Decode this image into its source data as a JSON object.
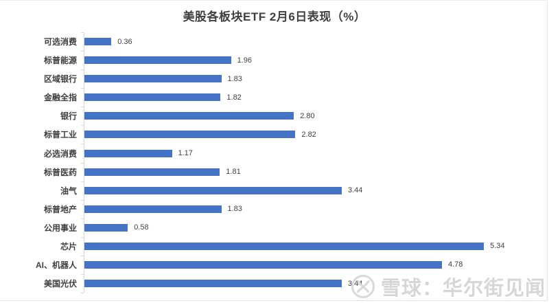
{
  "page": {
    "background": "#ffffff",
    "border_color": "#e4e4e4"
  },
  "title": "美股各板块ETF 2月6日表现（%）",
  "chart_data": {
    "type": "bar",
    "orientation": "horizontal",
    "title": "美股各板块ETF 2月6日表现（%）",
    "categories": [
      "可选消费",
      "标普能源",
      "区域银行",
      "金融全指",
      "银行",
      "标普工业",
      "必选消费",
      "标普医药",
      "油气",
      "标普地产",
      "公用事业",
      "芯片",
      "AI、机器人",
      "美国光伏"
    ],
    "values": [
      0.36,
      1.96,
      1.83,
      1.82,
      2.8,
      2.82,
      1.17,
      1.81,
      3.44,
      1.83,
      0.58,
      5.34,
      4.78,
      3.44
    ],
    "value_labels": [
      "0.36",
      "1.96",
      "1.83",
      "1.82",
      "2.80",
      "2.82",
      "1.17",
      "1.81",
      "3.44",
      "1.83",
      "0.58",
      "5.34",
      "4.78",
      "3.44"
    ],
    "xlabel": "",
    "ylabel": "",
    "xlim": [
      0,
      6
    ],
    "grid": false,
    "legend": false,
    "bar_color": "#4472C4",
    "axis_color": "#d9d9d9",
    "text_color": "#3f3f3f",
    "value_label_position": "outside-end"
  },
  "watermark": {
    "logo_icon": "xueqiu-snowball-icon",
    "text": "雪球：华尔街见闻",
    "color": "#d6d6d6"
  }
}
